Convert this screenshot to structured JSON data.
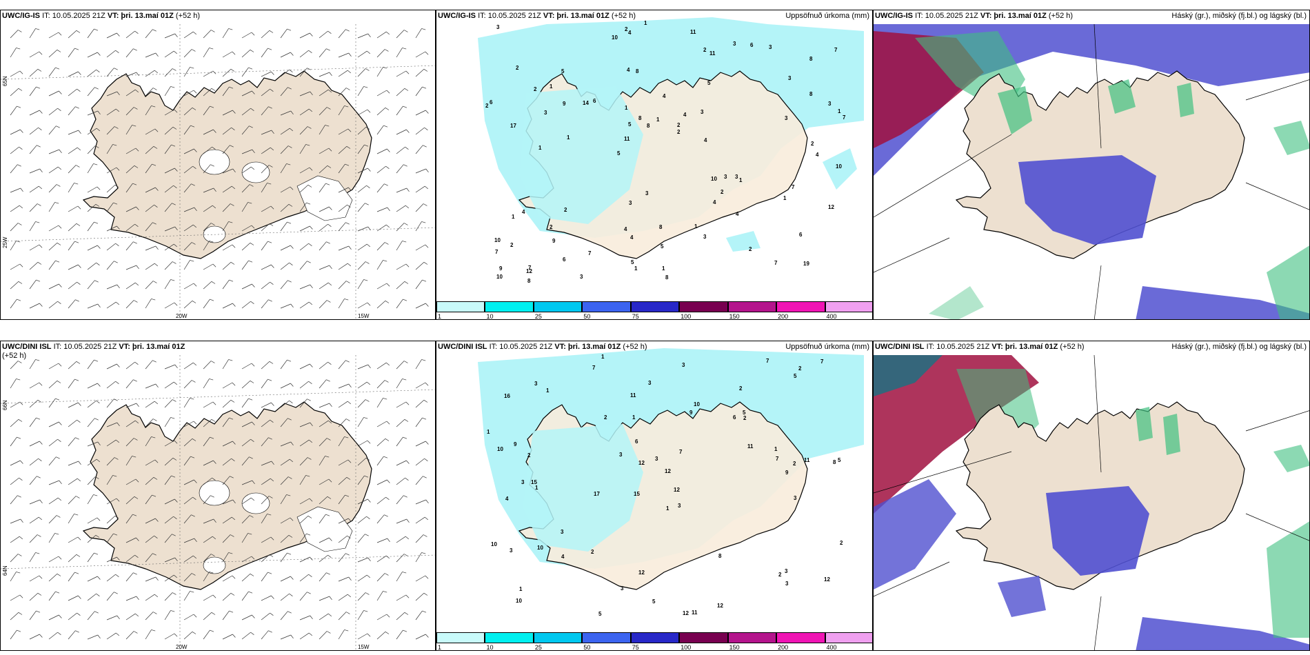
{
  "panels": {
    "p1": {
      "model": "UWC/IG-IS",
      "it": "IT: 10.05.2025 21Z",
      "vt_label": "VT:",
      "vt": "þri. 13.maí 01Z",
      "lead": "(+52 h)",
      "right": ""
    },
    "p2": {
      "model": "UWC/IG-IS",
      "it": "IT: 10.05.2025 21Z",
      "vt_label": "VT:",
      "vt": "þri. 13.maí 01Z",
      "lead": "(+52 h)",
      "right": "Uppsöfnuð úrkoma (mm)"
    },
    "p3": {
      "model": "UWC/IG-IS",
      "it": "IT: 10.05.2025 21Z",
      "vt_label": "VT:",
      "vt": "þri. 13.maí 01Z",
      "lead": "(+52 h)",
      "right": "Háský (gr.), miðský (fj.bl.) og lágský (bl.)"
    },
    "p4": {
      "model": "UWC/DINI ISL",
      "it": "IT: 10.05.2025 21Z",
      "vt_label": "VT:",
      "vt": "þri. 13.maí 01Z",
      "lead": "(+52 h)",
      "right": ""
    },
    "p5": {
      "model": "UWC/DINI ISL",
      "it": "IT: 10.05.2025 21Z",
      "vt_label": "VT:",
      "vt": "þri. 13.maí 01Z",
      "lead": "(+52 h)",
      "right": "Uppsöfnuð úrkoma (mm)"
    },
    "p6": {
      "model": "UWC/DINI ISL",
      "it": "IT: 10.05.2025 21Z",
      "vt_label": "VT:",
      "vt": "þri. 13.maí 01Z",
      "lead": "(+52 h)",
      "right": "Háský (gr.), miðský (fj.bl.) og lágský (bl.)"
    }
  },
  "axis_labels": {
    "lon_20w": "20W",
    "lon_15w": "15W",
    "lon_25w": "25W",
    "lat_65n": "65N",
    "lat_66n": "66N",
    "lat_64n": "64N"
  },
  "colorbar": {
    "labels": [
      "1",
      "10",
      "25",
      "50",
      "75",
      "100",
      "150",
      "200",
      "400"
    ],
    "colors": [
      "#c8fafa",
      "#00f0f0",
      "#00c8f0",
      "#3c64f0",
      "#2828c8",
      "#780050",
      "#b4148c",
      "#f014b4",
      "#f0a0f0"
    ]
  },
  "colors": {
    "land": "#ede0d0",
    "precip_light": "#b4f4f8",
    "cloud_low": "#5050d0",
    "cloud_mid": "#40c080",
    "cloud_high": "#a01040"
  },
  "precip_values_top": [
    "19",
    "17",
    "8",
    "5",
    "5",
    "7",
    "4",
    "4",
    "4",
    "6",
    "7",
    "9",
    "8",
    "4",
    "1",
    "2",
    "4",
    "7",
    "10",
    "8",
    "11",
    "4",
    "5",
    "5",
    "3",
    "2",
    "7",
    "6",
    "3",
    "8",
    "14",
    "3",
    "4",
    "6",
    "3",
    "2",
    "9",
    "4",
    "2",
    "1",
    "3",
    "7",
    "2",
    "3",
    "2",
    "8",
    "10",
    "8",
    "3",
    "1",
    "1",
    "6",
    "1",
    "6",
    "12",
    "11",
    "10",
    "8",
    "12",
    "3",
    "7",
    "3",
    "9",
    "10",
    "3",
    "2",
    "10",
    "1",
    "5",
    "1",
    "2",
    "4",
    "7",
    "5",
    "3",
    "3",
    "2",
    "1",
    "1",
    "2",
    "4",
    "3",
    "4",
    "8",
    "1",
    "2",
    "1",
    "2",
    "11",
    "1",
    "3",
    "2",
    "1"
  ],
  "precip_values_bottom": [
    "1",
    "2",
    "8",
    "15",
    "3",
    "15",
    "16",
    "6",
    "4",
    "9",
    "12",
    "10",
    "7",
    "17",
    "12",
    "11",
    "12",
    "7",
    "11",
    "3",
    "2",
    "3",
    "5",
    "11",
    "10",
    "9",
    "12",
    "7",
    "3",
    "3",
    "2",
    "10",
    "10",
    "3",
    "8",
    "2",
    "1",
    "3",
    "7",
    "3",
    "1",
    "5",
    "12",
    "3",
    "5",
    "2",
    "3",
    "5",
    "1",
    "12",
    "11",
    "9",
    "7",
    "5",
    "3",
    "4",
    "6",
    "3",
    "2",
    "1",
    "12",
    "3",
    "1",
    "2",
    "1",
    "10",
    "2",
    "1",
    "2"
  ]
}
